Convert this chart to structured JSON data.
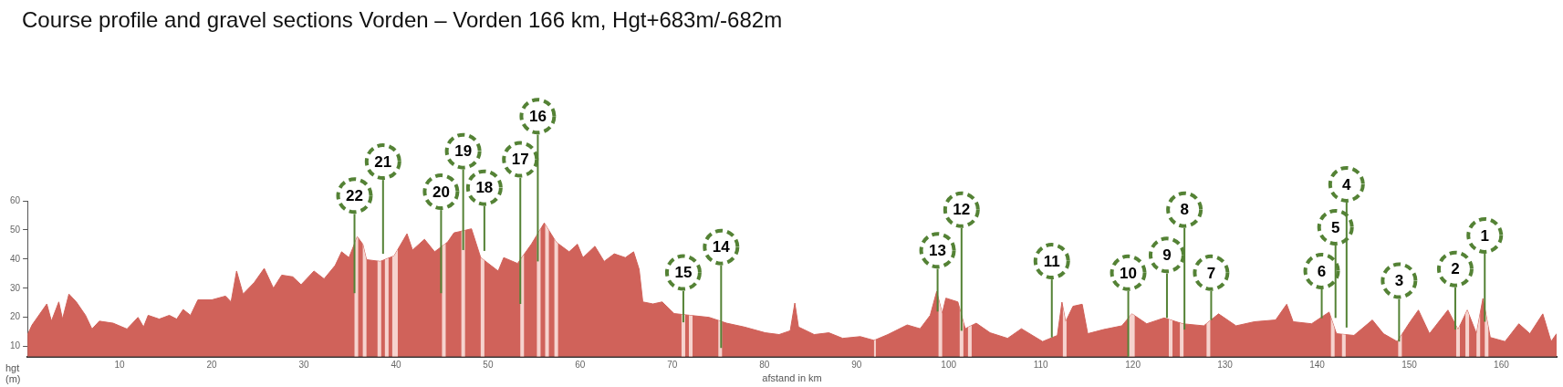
{
  "chart_data": {
    "type": "area",
    "title": "Course profile and gravel sections Vorden – Vorden 166 km, Hgt+683m/-682m",
    "xlabel": "afstand in km",
    "ylabel": "hgt (m)",
    "x": [
      0,
      0.5,
      2.1,
      2.6,
      3.4,
      3.8,
      4.5,
      5.3,
      6.3,
      7.0,
      7.8,
      9.3,
      10.8,
      12,
      12.6,
      13.1,
      14.3,
      15.4,
      16.2,
      16.9,
      17.7,
      18.5,
      20,
      21.5,
      22.1,
      22.7,
      23.4,
      24.6,
      25.7,
      26.7,
      27.6,
      28.8,
      29.7,
      31.1,
      32.2,
      33.4,
      34.1,
      34.9,
      35.8,
      36.4,
      36.8,
      38.3,
      39.8,
      41.2,
      41.8,
      43.1,
      44.2,
      45.6,
      46.3,
      47.3,
      48.2,
      49.2,
      51.1,
      51.7,
      53.2,
      54.7,
      56.1,
      57.4,
      58.8,
      59.7,
      60.3,
      61.6,
      62.6,
      63.7,
      64.9,
      65.8,
      66.4,
      66.8,
      67.9,
      68.9,
      70.2,
      71.9,
      74,
      75.9,
      77.8,
      80.1,
      81.6,
      82.8,
      83.3,
      83.7,
      85.4,
      87,
      88.5,
      90.4,
      91.9,
      93.4,
      95.5,
      96.9,
      98,
      98.7,
      99.3,
      99.7,
      101,
      101.8,
      103,
      104.5,
      106.4,
      107.9,
      110.2,
      111.8,
      112.3,
      112.7,
      113.5,
      114.5,
      115.1,
      116.8,
      118.8,
      119.9,
      121.5,
      123.4,
      125.4,
      127.7,
      129.3,
      131.2,
      133.2,
      135.5,
      136.7,
      137.4,
      139.4,
      141.3,
      142.1,
      144,
      146,
      147.2,
      148.7,
      150.1,
      151,
      152.2,
      154.2,
      155.3,
      156.3,
      157.3,
      158,
      158.8,
      160.4,
      161.9,
      163.1,
      164.5,
      165.4,
      166
    ],
    "values": [
      14,
      17.4,
      24.6,
      18.7,
      25.3,
      19.4,
      28,
      25.3,
      20.7,
      16,
      18.7,
      18,
      16,
      20,
      16.7,
      20.7,
      19.4,
      20.7,
      19.4,
      22.7,
      20.7,
      26,
      26,
      27.3,
      25.3,
      35.9,
      28,
      31.9,
      36.8,
      30,
      34.5,
      33.9,
      31.2,
      35.9,
      33.2,
      37.8,
      42.5,
      40.5,
      47.7,
      45.1,
      39.8,
      39.2,
      41.1,
      48.7,
      43.1,
      46.8,
      42.5,
      45.8,
      49,
      49.7,
      50.4,
      40.5,
      35.9,
      40.5,
      38.5,
      45.1,
      52.4,
      45.8,
      42.5,
      45.1,
      40.5,
      44.4,
      39.2,
      41.8,
      40.5,
      42.5,
      36.5,
      25.3,
      24.6,
      25.3,
      21.3,
      20.7,
      20,
      18,
      16.7,
      14.7,
      14.1,
      15.4,
      24.9,
      16.7,
      14.1,
      14.7,
      12.8,
      13.4,
      12.1,
      14.1,
      17.4,
      16.1,
      20.7,
      28.9,
      21.3,
      26.6,
      25.3,
      16.1,
      18,
      14.7,
      12.8,
      16.1,
      11.7,
      13.8,
      25.2,
      18.5,
      23.8,
      24.5,
      14.4,
      15.8,
      17.1,
      21.2,
      17.8,
      19.8,
      17.8,
      17.1,
      21.2,
      17.1,
      18.5,
      19.1,
      24.5,
      18.5,
      17.8,
      21.8,
      14.4,
      13.8,
      19.1,
      14.4,
      11.7,
      18.5,
      22.5,
      14.4,
      22.5,
      15.8,
      22.5,
      14.4,
      26.5,
      13.1,
      11.7,
      17.8,
      14.4,
      21.2,
      11.7,
      14.4
    ],
    "color": "#d0625a",
    "xlim": [
      0,
      166
    ],
    "xticks": [
      10,
      20,
      30,
      40,
      50,
      60,
      70,
      80,
      90,
      100,
      110,
      120,
      130,
      140,
      150,
      160
    ],
    "ylim": [
      6.5,
      60
    ],
    "yticks": [
      10,
      20,
      30,
      40,
      50,
      60
    ],
    "bands": [
      {
        "axis": "x",
        "from": 35.5,
        "to": 35.9,
        "color": "#f6d3ce"
      },
      {
        "axis": "x",
        "from": 36.4,
        "to": 36.8,
        "color": "#f6d3ce"
      },
      {
        "axis": "x",
        "from": 38.0,
        "to": 38.4,
        "color": "#f6d3ce"
      },
      {
        "axis": "x",
        "from": 38.8,
        "to": 39.2,
        "color": "#f6d3ce"
      },
      {
        "axis": "x",
        "from": 39.6,
        "to": 40.2,
        "color": "#f6d3ce"
      },
      {
        "axis": "x",
        "from": 45.0,
        "to": 45.4,
        "color": "#f6d3ce"
      },
      {
        "axis": "x",
        "from": 47.1,
        "to": 47.5,
        "color": "#f6d3ce"
      },
      {
        "axis": "x",
        "from": 49.2,
        "to": 49.6,
        "color": "#f6d3ce"
      },
      {
        "axis": "x",
        "from": 53.5,
        "to": 53.9,
        "color": "#f6d3ce"
      },
      {
        "axis": "x",
        "from": 55.3,
        "to": 55.7,
        "color": "#f6d3ce"
      },
      {
        "axis": "x",
        "from": 56.2,
        "to": 56.6,
        "color": "#f6d3ce"
      },
      {
        "axis": "x",
        "from": 57.2,
        "to": 57.6,
        "color": "#f6d3ce"
      },
      {
        "axis": "x",
        "from": 71.0,
        "to": 71.4,
        "color": "#f6d3ce"
      },
      {
        "axis": "x",
        "from": 71.8,
        "to": 72.2,
        "color": "#f6d3ce"
      },
      {
        "axis": "x",
        "from": 75.0,
        "to": 75.4,
        "color": "#f6d3ce"
      },
      {
        "axis": "x",
        "from": 91.9,
        "to": 92.1,
        "color": "#f6d3ce"
      },
      {
        "axis": "x",
        "from": 98.9,
        "to": 99.3,
        "color": "#f6d3ce"
      },
      {
        "axis": "x",
        "from": 101.2,
        "to": 101.6,
        "color": "#f6d3ce"
      },
      {
        "axis": "x",
        "from": 102.1,
        "to": 102.5,
        "color": "#f6d3ce"
      },
      {
        "axis": "x",
        "from": 112.4,
        "to": 112.8,
        "color": "#f6d3ce"
      },
      {
        "axis": "x",
        "from": 119.5,
        "to": 120.2,
        "color": "#f6d3ce"
      },
      {
        "axis": "x",
        "from": 123.9,
        "to": 124.3,
        "color": "#f6d3ce"
      },
      {
        "axis": "x",
        "from": 125.1,
        "to": 125.5,
        "color": "#f6d3ce"
      },
      {
        "axis": "x",
        "from": 128.0,
        "to": 128.4,
        "color": "#f6d3ce"
      },
      {
        "axis": "x",
        "from": 141.5,
        "to": 141.9,
        "color": "#f6d3ce"
      },
      {
        "axis": "x",
        "from": 142.7,
        "to": 143.1,
        "color": "#f6d3ce"
      },
      {
        "axis": "x",
        "from": 148.8,
        "to": 149.2,
        "color": "#f6d3ce"
      },
      {
        "axis": "x",
        "from": 155.1,
        "to": 155.5,
        "color": "#f6d3ce"
      },
      {
        "axis": "x",
        "from": 156.1,
        "to": 156.5,
        "color": "#f6d3ce"
      },
      {
        "axis": "x",
        "from": 157.3,
        "to": 157.7,
        "color": "#f6d3ce"
      },
      {
        "axis": "x",
        "from": 158.2,
        "to": 158.6,
        "color": "#f6d3ce"
      }
    ],
    "annotations": [
      {
        "text": "1",
        "x": 158.2,
        "y": 18.5
      },
      {
        "text": "2",
        "x": 155,
        "y": 15.8
      },
      {
        "text": "3",
        "x": 148.9,
        "y": 11.7
      },
      {
        "text": "4",
        "x": 143.2,
        "y": 16.5
      },
      {
        "text": "5",
        "x": 142,
        "y": 19.8
      },
      {
        "text": "6",
        "x": 140.5,
        "y": 19.7
      },
      {
        "text": "7",
        "x": 128.5,
        "y": 19.1
      },
      {
        "text": "8",
        "x": 125.6,
        "y": 15.8
      },
      {
        "text": "9",
        "x": 123.7,
        "y": 19.8
      },
      {
        "text": "10",
        "x": 119.5,
        "y": 6.5
      },
      {
        "text": "11",
        "x": 111.2,
        "y": 13.1
      },
      {
        "text": "12",
        "x": 101.4,
        "y": 15.4
      },
      {
        "text": "13",
        "x": 98.8,
        "y": 22
      },
      {
        "text": "14",
        "x": 75.3,
        "y": 9.5
      },
      {
        "text": "15",
        "x": 71.2,
        "y": 18.3
      },
      {
        "text": "16",
        "x": 55.4,
        "y": 39.2
      },
      {
        "text": "17",
        "x": 53.5,
        "y": 24.6
      },
      {
        "text": "18",
        "x": 49.6,
        "y": 42.8
      },
      {
        "text": "19",
        "x": 47.3,
        "y": 43.1
      },
      {
        "text": "20",
        "x": 44.9,
        "y": 28.3
      },
      {
        "text": "21",
        "x": 38.6,
        "y": 41.8
      },
      {
        "text": "22",
        "x": 35.5,
        "y": 28.3
      }
    ],
    "grid": false,
    "legend": false
  }
}
